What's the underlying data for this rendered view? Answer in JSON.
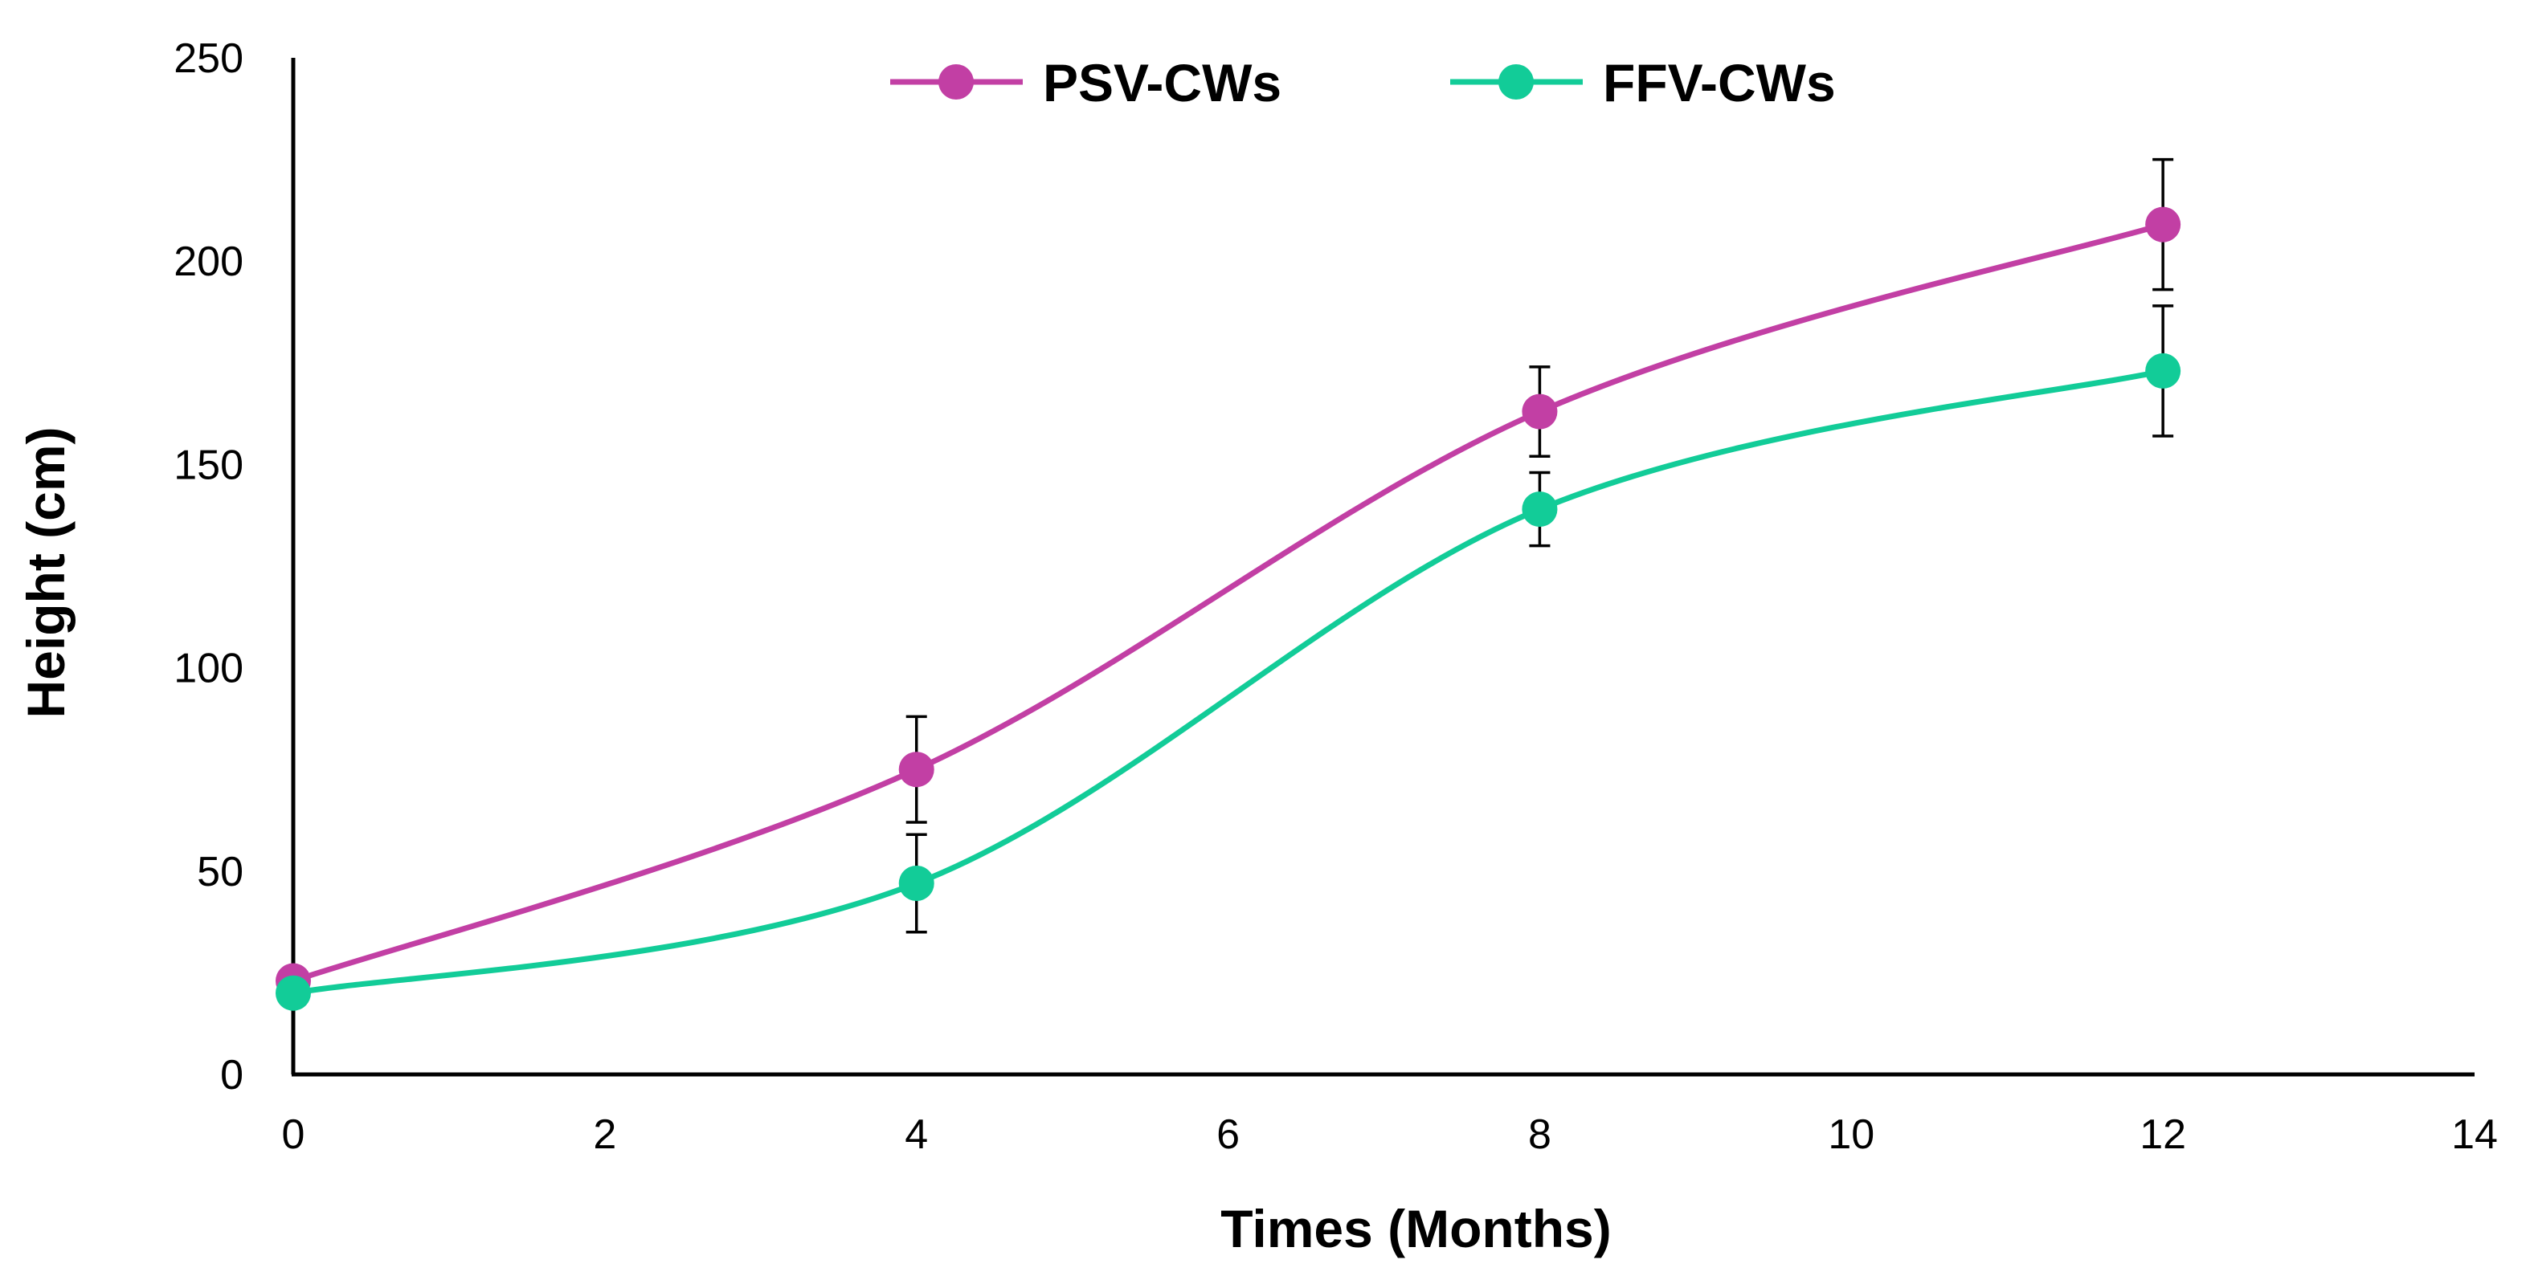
{
  "chart_data": {
    "type": "line",
    "title": "",
    "xlabel": "Times (Months)",
    "ylabel": "Height (cm)",
    "xlim": [
      0,
      14
    ],
    "ylim": [
      0,
      250
    ],
    "x_ticks": [
      0,
      2,
      4,
      6,
      8,
      10,
      12,
      14
    ],
    "y_ticks": [
      0,
      50,
      100,
      150,
      200,
      250
    ],
    "grid": false,
    "legend_position": "top-center",
    "smooth": true,
    "series": [
      {
        "name": "PSV-CWs",
        "color": "#C23FA4",
        "x": [
          0,
          4,
          8,
          12
        ],
        "y": [
          23,
          75,
          163,
          209
        ],
        "error": [
          null,
          13,
          11,
          16
        ]
      },
      {
        "name": "FFV-CWs",
        "color": "#12CC98",
        "x": [
          0,
          4,
          8,
          12
        ],
        "y": [
          20,
          47,
          139,
          173
        ],
        "error": [
          null,
          12,
          9,
          16
        ]
      }
    ]
  }
}
